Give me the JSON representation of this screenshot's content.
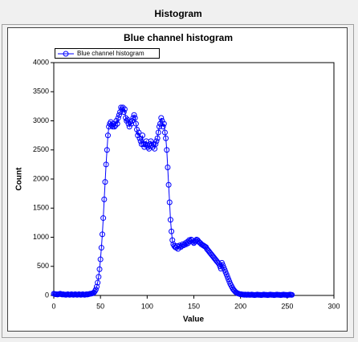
{
  "window_title": "Histogram",
  "chart_data": {
    "type": "line",
    "title": "Blue channel histogram",
    "xlabel": "Value",
    "ylabel": "Count",
    "xlim": [
      0,
      300
    ],
    "xticks": [
      0,
      50,
      100,
      150,
      200,
      250,
      300
    ],
    "ylim": [
      0,
      4000
    ],
    "yticks": [
      0,
      500,
      1000,
      1500,
      2000,
      2500,
      3000,
      3500,
      4000
    ],
    "legend": "upper left",
    "x": [
      0,
      1,
      2,
      3,
      4,
      5,
      6,
      7,
      8,
      9,
      10,
      11,
      12,
      13,
      14,
      15,
      16,
      17,
      18,
      19,
      20,
      21,
      22,
      23,
      24,
      25,
      26,
      27,
      28,
      29,
      30,
      31,
      32,
      33,
      34,
      35,
      36,
      37,
      38,
      39,
      40,
      41,
      42,
      43,
      44,
      45,
      46,
      47,
      48,
      49,
      50,
      51,
      52,
      53,
      54,
      55,
      56,
      57,
      58,
      59,
      60,
      61,
      62,
      63,
      64,
      65,
      66,
      67,
      68,
      69,
      70,
      71,
      72,
      73,
      74,
      75,
      76,
      77,
      78,
      79,
      80,
      81,
      82,
      83,
      84,
      85,
      86,
      87,
      88,
      89,
      90,
      91,
      92,
      93,
      94,
      95,
      96,
      97,
      98,
      99,
      100,
      101,
      102,
      103,
      104,
      105,
      106,
      107,
      108,
      109,
      110,
      111,
      112,
      113,
      114,
      115,
      116,
      117,
      118,
      119,
      120,
      121,
      122,
      123,
      124,
      125,
      126,
      127,
      128,
      129,
      130,
      131,
      132,
      133,
      134,
      135,
      136,
      137,
      138,
      139,
      140,
      141,
      142,
      143,
      144,
      145,
      146,
      147,
      148,
      149,
      150,
      151,
      152,
      153,
      154,
      155,
      156,
      157,
      158,
      159,
      160,
      161,
      162,
      163,
      164,
      165,
      166,
      167,
      168,
      169,
      170,
      171,
      172,
      173,
      174,
      175,
      176,
      177,
      178,
      179,
      180,
      181,
      182,
      183,
      184,
      185,
      186,
      187,
      188,
      189,
      190,
      191,
      192,
      193,
      194,
      195,
      196,
      197,
      198,
      199,
      200,
      201,
      202,
      203,
      204,
      205,
      206,
      207,
      208,
      209,
      210,
      211,
      212,
      213,
      214,
      215,
      216,
      217,
      218,
      219,
      220,
      221,
      222,
      223,
      224,
      225,
      226,
      227,
      228,
      229,
      230,
      231,
      232,
      233,
      234,
      235,
      236,
      237,
      238,
      239,
      240,
      241,
      242,
      243,
      244,
      245,
      246,
      247,
      248,
      249,
      250,
      251,
      252,
      253,
      254,
      255
    ],
    "series": [
      {
        "name": "Blue channel histogram",
        "color": "#0000ff",
        "values": [
          30,
          25,
          20,
          20,
          15,
          20,
          25,
          30,
          20,
          15,
          20,
          15,
          15,
          10,
          15,
          20,
          15,
          10,
          15,
          20,
          15,
          10,
          15,
          20,
          15,
          10,
          15,
          20,
          15,
          10,
          15,
          20,
          15,
          10,
          15,
          20,
          15,
          20,
          25,
          30,
          30,
          35,
          40,
          50,
          70,
          100,
          150,
          220,
          320,
          450,
          620,
          820,
          1050,
          1330,
          1650,
          1950,
          2250,
          2500,
          2750,
          2900,
          2950,
          2980,
          2920,
          2900,
          2950,
          2900,
          2920,
          3000,
          2950,
          3050,
          3100,
          3150,
          3230,
          3200,
          3230,
          3150,
          3200,
          3050,
          3000,
          3020,
          2950,
          2900,
          2980,
          2950,
          3000,
          3050,
          3100,
          3050,
          2950,
          2850,
          2750,
          2800,
          2700,
          2650,
          2600,
          2750,
          2600,
          2550,
          2600,
          2650,
          2580,
          2550,
          2520,
          2600,
          2650,
          2580,
          2550,
          2600,
          2520,
          2600,
          2650,
          2700,
          2800,
          2900,
          2950,
          3050,
          3000,
          2900,
          2950,
          2800,
          2700,
          2500,
          2200,
          1900,
          1600,
          1300,
          1100,
          950,
          880,
          850,
          830,
          820,
          850,
          800,
          840,
          860,
          830,
          850,
          880,
          860,
          870,
          900,
          880,
          920,
          900,
          950,
          930,
          960,
          950,
          920,
          900,
          920,
          940,
          960,
          950,
          930,
          910,
          900,
          880,
          870,
          860,
          850,
          840,
          830,
          800,
          780,
          760,
          740,
          720,
          700,
          680,
          660,
          640,
          620,
          600,
          580,
          560,
          540,
          500,
          460,
          560,
          520,
          480,
          440,
          400,
          360,
          320,
          280,
          240,
          200,
          170,
          140,
          110,
          90,
          70,
          55,
          45,
          35,
          30,
          25,
          20,
          20,
          15,
          15,
          10,
          15,
          10,
          10,
          15,
          10,
          10,
          10,
          15,
          10,
          10,
          5,
          10,
          10,
          15,
          10,
          10,
          10,
          5,
          10,
          10,
          15,
          10,
          10,
          10,
          5,
          10,
          10,
          15,
          10,
          10,
          10,
          5,
          10,
          10,
          15,
          10,
          10,
          10,
          5,
          10,
          10,
          15,
          10,
          10,
          10,
          5,
          10,
          10,
          15,
          10,
          10
        ]
      }
    ]
  }
}
